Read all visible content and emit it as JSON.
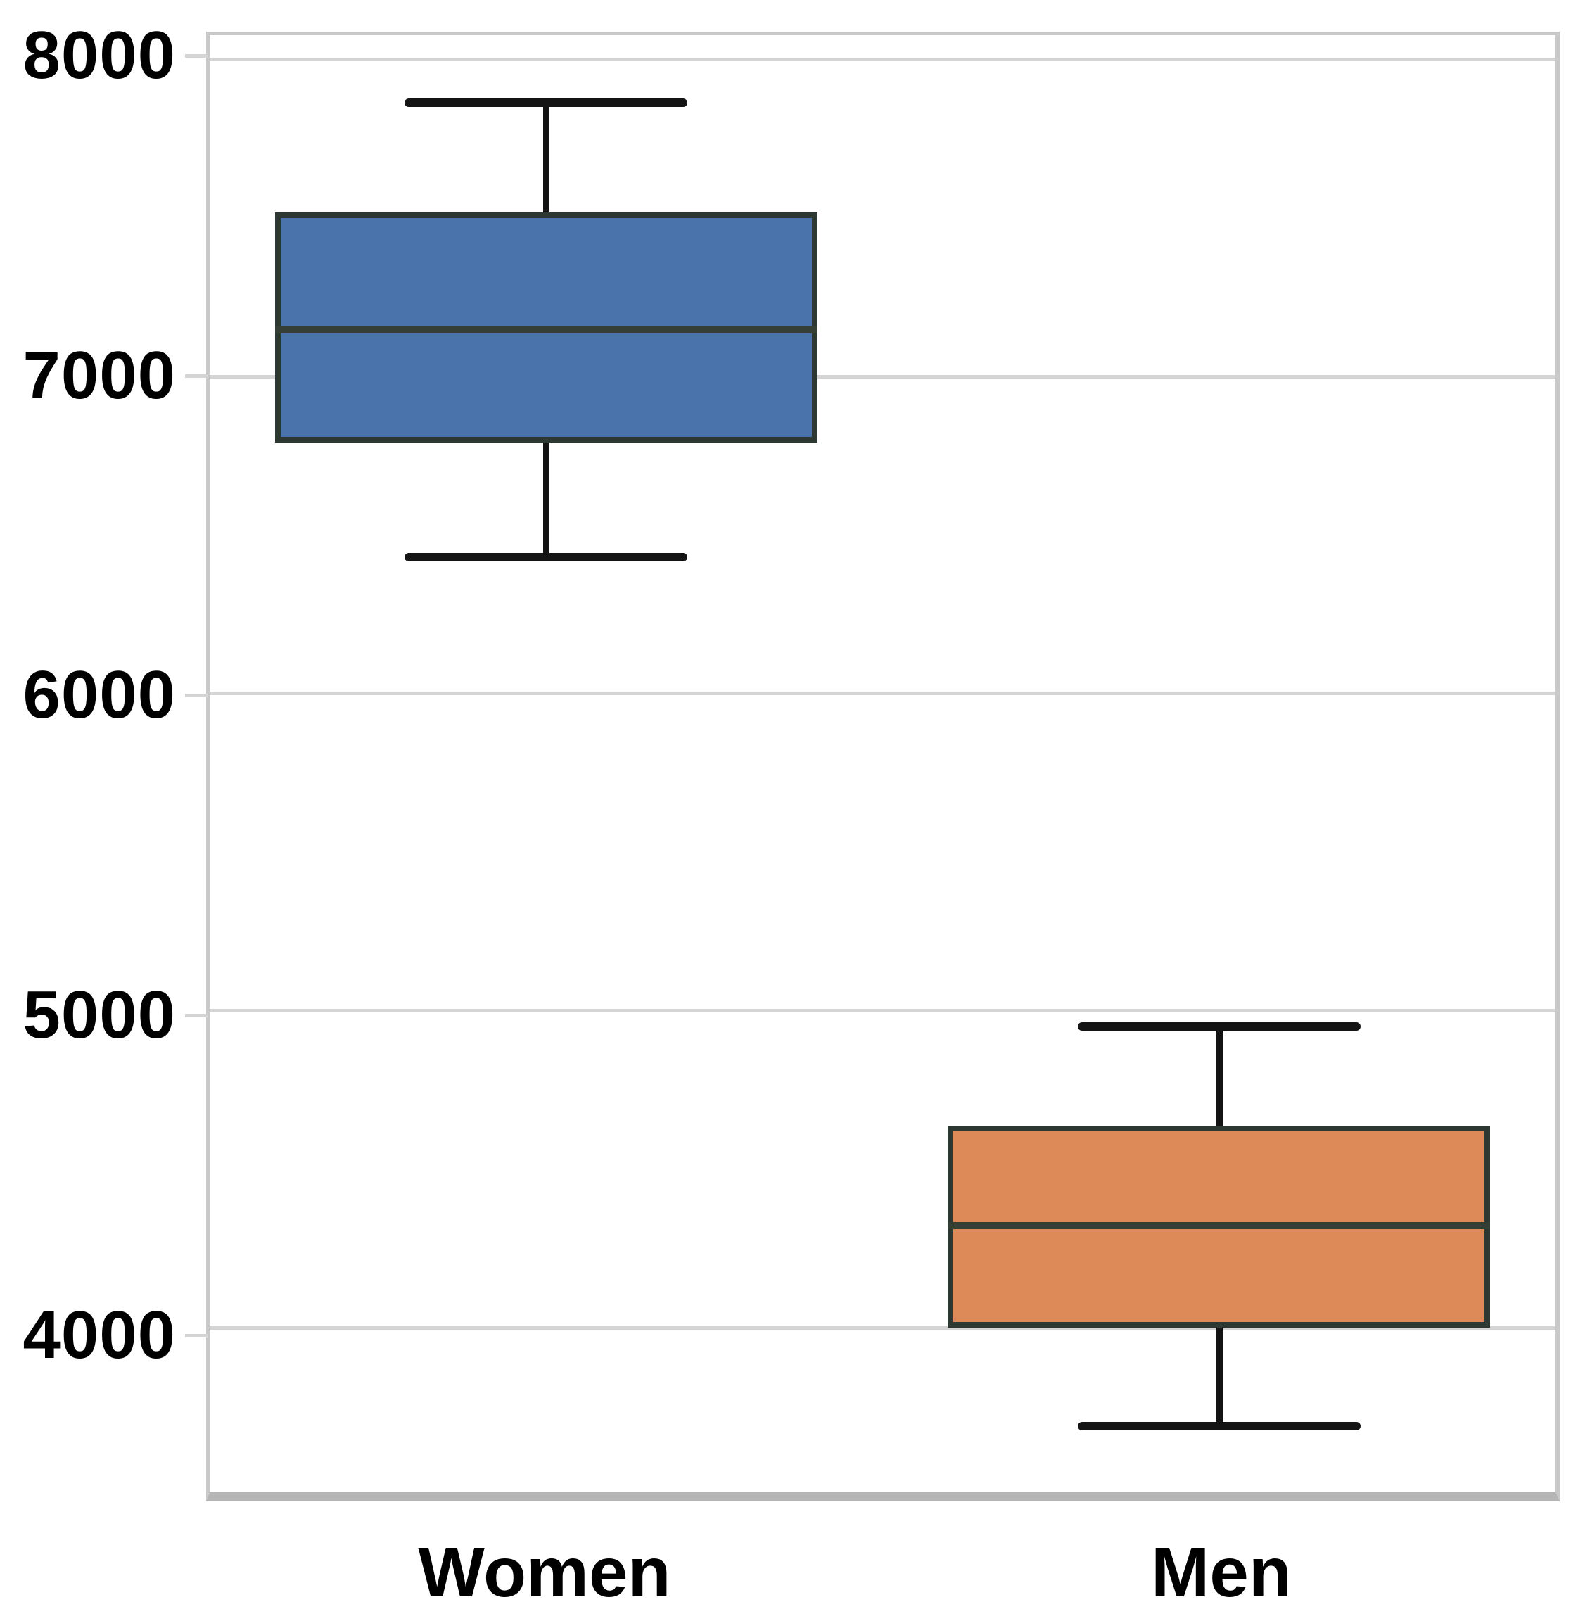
{
  "figure": {
    "kind": "seaborn-style box plot, no title, white background"
  },
  "chart_data": {
    "type": "box",
    "title": "",
    "xlabel": "",
    "ylabel": "",
    "categories": [
      "Women",
      "Men"
    ],
    "y_tick_labels": [
      "8000",
      "7000",
      "6000",
      "5000",
      "4000"
    ],
    "y_ticks": [
      8000,
      7000,
      6000,
      5000,
      4000
    ],
    "ylim": [
      3480,
      8075
    ],
    "grid": true,
    "legend_position": "none",
    "series": [
      {
        "name": "Women",
        "whisker_low": 6430,
        "q1": 6790,
        "median": 7145,
        "q3": 7515,
        "whisker_high": 7865,
        "fill_color": "#4a72ab"
      },
      {
        "name": "Men",
        "whisker_low": 3690,
        "q1": 4000,
        "median": 4320,
        "q3": 4635,
        "whisker_high": 4950,
        "fill_color": "#de8a58"
      }
    ],
    "style": {
      "grid_line_color": "#d4d4d4",
      "axis_border_color": "#c9c9c9",
      "axis_bottom_border_color": "#b5b5b5",
      "whisker_color": "#141414",
      "box_edge_color": "#2e3833",
      "median_color": "#363f36",
      "tick_label_color": "#000000",
      "box_width_fraction": 0.403,
      "cap_width_fraction": 0.21
    }
  }
}
